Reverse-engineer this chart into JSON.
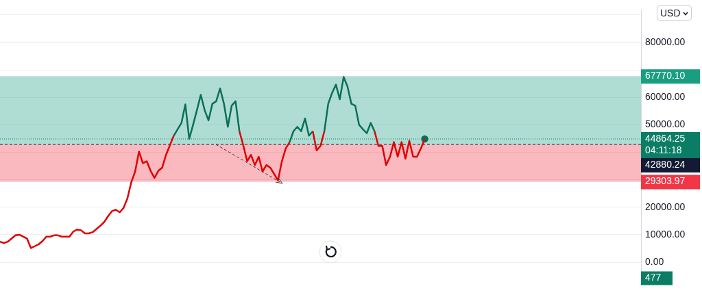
{
  "chart_data": {
    "type": "line",
    "categories": [
      null,
      null,
      null,
      null,
      null,
      null,
      null,
      null,
      null,
      null,
      null,
      null,
      null,
      null,
      null,
      null,
      null,
      null,
      null,
      null,
      null,
      null,
      null,
      null,
      null,
      null,
      null,
      null,
      null,
      null,
      null,
      null,
      null,
      null,
      null,
      null,
      null,
      null,
      null,
      null,
      null,
      null,
      null,
      null,
      null,
      null,
      null,
      null,
      null,
      null,
      null,
      null,
      null,
      null,
      null,
      null,
      null,
      null,
      null,
      null,
      null,
      null,
      null,
      null,
      null,
      null,
      null,
      null,
      null,
      null,
      null,
      null,
      null,
      null,
      null,
      null,
      null,
      null,
      null,
      null,
      null,
      null,
      null,
      null,
      null,
      null,
      null,
      null,
      null,
      null,
      null,
      null,
      null,
      null,
      null,
      null,
      null,
      null,
      null,
      null,
      null,
      null,
      null,
      null,
      null,
      null,
      null,
      null,
      null,
      null,
      null,
      null,
      null,
      null,
      null,
      null,
      null,
      null,
      null,
      null,
      null,
      null,
      null,
      null,
      null,
      null,
      null,
      null,
      null,
      null,
      null,
      null,
      null,
      null,
      null,
      null,
      null,
      null,
      null,
      null,
      null,
      null,
      null,
      null,
      null,
      null,
      null,
      null,
      null,
      null,
      null,
      null,
      null,
      null,
      null,
      null,
      null,
      null,
      null,
      null,
      null,
      null,
      null,
      null,
      null,
      null,
      null
    ],
    "series": [
      {
        "color": "#e00000",
        "values": [
          7440,
          6980,
          7440,
          8600,
          9770,
          10000,
          9300,
          8600,
          5120,
          5800,
          6500,
          7680,
          9300,
          9300,
          9770,
          9770,
          9300,
          9300,
          9300,
          11160,
          11860,
          11630,
          10470,
          10470,
          10930,
          12100,
          13260,
          14650,
          16750,
          18600,
          19070,
          18140,
          19770,
          23260,
          29070,
          33030,
          40240,
          36050,
          36750,
          33260,
          30700,
          33260,
          34420,
          39080,
          42570,
          46050,
          null,
          null,
          null,
          null,
          null,
          null,
          null,
          null,
          null,
          null,
          null,
          null,
          null,
          null,
          null,
          null,
          47680,
          42570,
          36750,
          39080,
          35360,
          38380,
          33030,
          35360,
          34420,
          32100,
          29770,
          36750,
          41400,
          43730,
          null,
          null,
          null,
          null,
          null,
          47680,
          40700,
          42330,
          47680,
          null,
          null,
          null,
          null,
          null,
          null,
          null,
          null,
          null,
          null,
          null,
          null,
          47680,
          42330,
          42330,
          35360,
          38380,
          43730,
          38380,
          43730,
          37680,
          44200,
          38380,
          38380,
          41400,
          44864,
          null,
          null,
          null,
          null,
          null,
          null,
          null,
          null,
          null,
          null,
          null,
          null,
          null,
          null,
          null,
          null,
          null,
          null,
          null,
          null,
          null,
          null,
          null,
          null,
          null,
          null,
          null,
          null,
          null,
          null,
          null,
          null,
          null,
          null,
          null,
          null,
          null,
          null,
          null,
          null,
          null,
          null,
          null,
          null,
          null,
          null,
          null,
          null,
          null,
          null,
          null,
          null,
          null,
          null,
          null,
          null
        ]
      },
      {
        "color": "#0b6e5a",
        "values": [
          null,
          null,
          null,
          null,
          null,
          null,
          null,
          null,
          null,
          null,
          null,
          null,
          null,
          null,
          null,
          null,
          null,
          null,
          null,
          null,
          null,
          null,
          null,
          null,
          null,
          null,
          null,
          null,
          null,
          null,
          null,
          null,
          null,
          null,
          null,
          null,
          null,
          null,
          null,
          null,
          null,
          null,
          null,
          null,
          null,
          46050,
          48380,
          50700,
          57450,
          44900,
          50000,
          55360,
          60940,
          55360,
          51640,
          57680,
          58620,
          63270,
          57680,
          49300,
          56990,
          58620,
          47680,
          null,
          null,
          null,
          null,
          null,
          null,
          null,
          null,
          null,
          null,
          null,
          null,
          43730,
          47680,
          49300,
          47680,
          52330,
          46050,
          47680,
          null,
          null,
          47680,
          57680,
          61640,
          64660,
          59310,
          67450,
          63960,
          57680,
          56990,
          50000,
          48380,
          46980,
          50700,
          47680,
          null,
          null,
          null,
          null,
          null,
          null,
          null,
          null,
          null,
          null,
          null,
          null,
          44864,
          null,
          null,
          null,
          null,
          null,
          null,
          null,
          null,
          null,
          null,
          null,
          null,
          null,
          null,
          null,
          null,
          null,
          null,
          null,
          null,
          null,
          null,
          null,
          null,
          null,
          null,
          null,
          null,
          null,
          null,
          null,
          null,
          null,
          null,
          null,
          null,
          null,
          null,
          null,
          null,
          null,
          null,
          null,
          null,
          null,
          null,
          null,
          null,
          null,
          null,
          null,
          null,
          null,
          null,
          null,
          null
        ]
      }
    ],
    "ylim": [
      -8370,
      91880
    ],
    "yticks": [
      {
        "value": 0,
        "label": "0.00"
      },
      {
        "value": 10000,
        "label": "10000.00"
      },
      {
        "value": 20000,
        "label": "20000.00"
      },
      {
        "value": 30000,
        "label": null
      },
      {
        "value": 40000,
        "label": null
      },
      {
        "value": 50000,
        "label": "50000.00"
      },
      {
        "value": 60000,
        "label": "60000.00"
      },
      {
        "value": 70000,
        "label": null
      },
      {
        "value": 80000,
        "label": "80000.00"
      },
      {
        "value": 90000,
        "label": null
      }
    ],
    "tick_labels": "y",
    "grid": "y",
    "bands": [
      {
        "axis": "y",
        "from": 42880.24,
        "to": 67770.1,
        "label": "67770.10",
        "color": "#1a9e80"
      },
      {
        "axis": "y",
        "from": 29303.97,
        "to": 42880.24,
        "label": "29303.97",
        "color": "#f23645"
      }
    ],
    "ref_lines": [
      {
        "axis": "y",
        "value": 42880.24,
        "label": "42880.24",
        "color": "#131a33",
        "line_style": "dashed"
      },
      {
        "axis": "y",
        "value": 44864.25,
        "label": "44864.25\n04:11:18",
        "color": "#0b7d64",
        "line_style": "dotted"
      }
    ],
    "annotations": [
      "USD",
      "477"
    ]
  }
}
